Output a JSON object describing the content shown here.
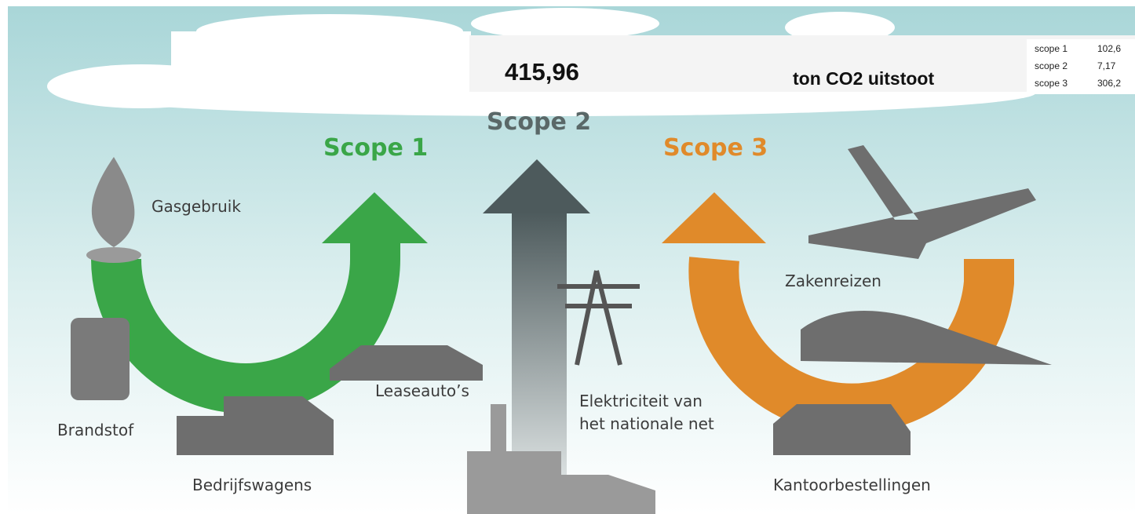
{
  "summary": {
    "total": "415,96",
    "unit": "ton CO2 uitstoot"
  },
  "breakdown": {
    "rows": [
      [
        "scope 1",
        "102,6"
      ],
      [
        "scope 2",
        "7,17"
      ],
      [
        "scope 3",
        "306,2"
      ]
    ]
  },
  "scopes": [
    "Scope 1",
    "Scope 2",
    "Scope 3"
  ],
  "labels": {
    "gas": "Gasgebruik",
    "fuel": "Brandstof",
    "trucks": "Bedrijfswagens",
    "lease": "Leaseauto’s",
    "electricity": [
      "Elektriciteit van",
      "het nationale net"
    ],
    "travel": "Zakenreizen",
    "office": "Kantoorbestellingen"
  }
}
